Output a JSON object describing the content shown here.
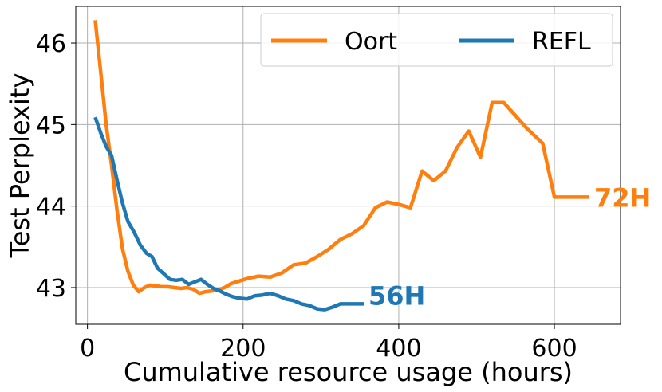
{
  "chart_data": {
    "type": "line",
    "xlabel": "Cumulative resource usage (hours)",
    "ylabel": "Test Perplexity",
    "xlim": [
      -15,
      685
    ],
    "ylim": [
      42.55,
      46.45
    ],
    "xticks": [
      0,
      200,
      400,
      600
    ],
    "yticks": [
      43,
      44,
      45,
      46
    ],
    "xtick_labels": [
      "0",
      "200",
      "400",
      "600"
    ],
    "ytick_labels": [
      "43",
      "44",
      "45",
      "46"
    ],
    "grid": true,
    "legend": {
      "placement": "top-right",
      "columns": 2
    },
    "series": [
      {
        "name": "Oort",
        "color": "#ff7f0e",
        "end_label": "72H",
        "x": [
          10,
          17,
          24,
          31,
          38,
          45,
          52,
          59,
          66,
          73,
          80,
          88,
          95,
          103,
          112,
          120,
          128,
          136,
          144,
          152,
          160,
          168,
          176,
          185,
          195,
          205,
          220,
          235,
          250,
          265,
          280,
          295,
          310,
          325,
          340,
          355,
          370,
          385,
          400,
          415,
          430,
          445,
          460,
          475,
          490,
          505,
          520,
          535,
          550,
          565,
          585,
          600,
          620,
          645
        ],
        "y": [
          46.28,
          45.65,
          45.0,
          44.5,
          43.95,
          43.48,
          43.2,
          43.03,
          42.95,
          43.0,
          43.03,
          43.02,
          43.01,
          43.01,
          43.0,
          42.99,
          43.0,
          42.98,
          42.93,
          42.95,
          42.96,
          42.97,
          43.0,
          43.05,
          43.08,
          43.11,
          43.14,
          43.13,
          43.18,
          43.28,
          43.3,
          43.38,
          43.47,
          43.59,
          43.66,
          43.76,
          43.98,
          44.05,
          44.02,
          43.98,
          44.43,
          44.31,
          44.43,
          44.72,
          44.92,
          44.6,
          45.27,
          45.27,
          45.11,
          44.95,
          44.77,
          44.11,
          44.11,
          44.11
        ]
      },
      {
        "name": "REFL",
        "color": "#1f77b4",
        "end_label": "56H",
        "x": [
          10,
          17,
          24,
          31,
          38,
          45,
          52,
          60,
          68,
          76,
          83,
          90,
          98,
          106,
          114,
          122,
          130,
          138,
          146,
          154,
          162,
          170,
          178,
          186,
          195,
          205,
          215,
          225,
          235,
          245,
          255,
          265,
          275,
          285,
          295,
          305,
          315,
          325,
          335,
          345,
          355
        ],
        "y": [
          45.09,
          44.9,
          44.73,
          44.62,
          44.32,
          44.04,
          43.81,
          43.68,
          43.52,
          43.42,
          43.38,
          43.24,
          43.17,
          43.1,
          43.09,
          43.1,
          43.04,
          43.07,
          43.1,
          43.04,
          42.99,
          42.96,
          42.92,
          42.89,
          42.87,
          42.86,
          42.9,
          42.91,
          42.93,
          42.9,
          42.86,
          42.84,
          42.8,
          42.78,
          42.74,
          42.73,
          42.76,
          42.8,
          42.8,
          42.8,
          42.8
        ]
      }
    ]
  }
}
